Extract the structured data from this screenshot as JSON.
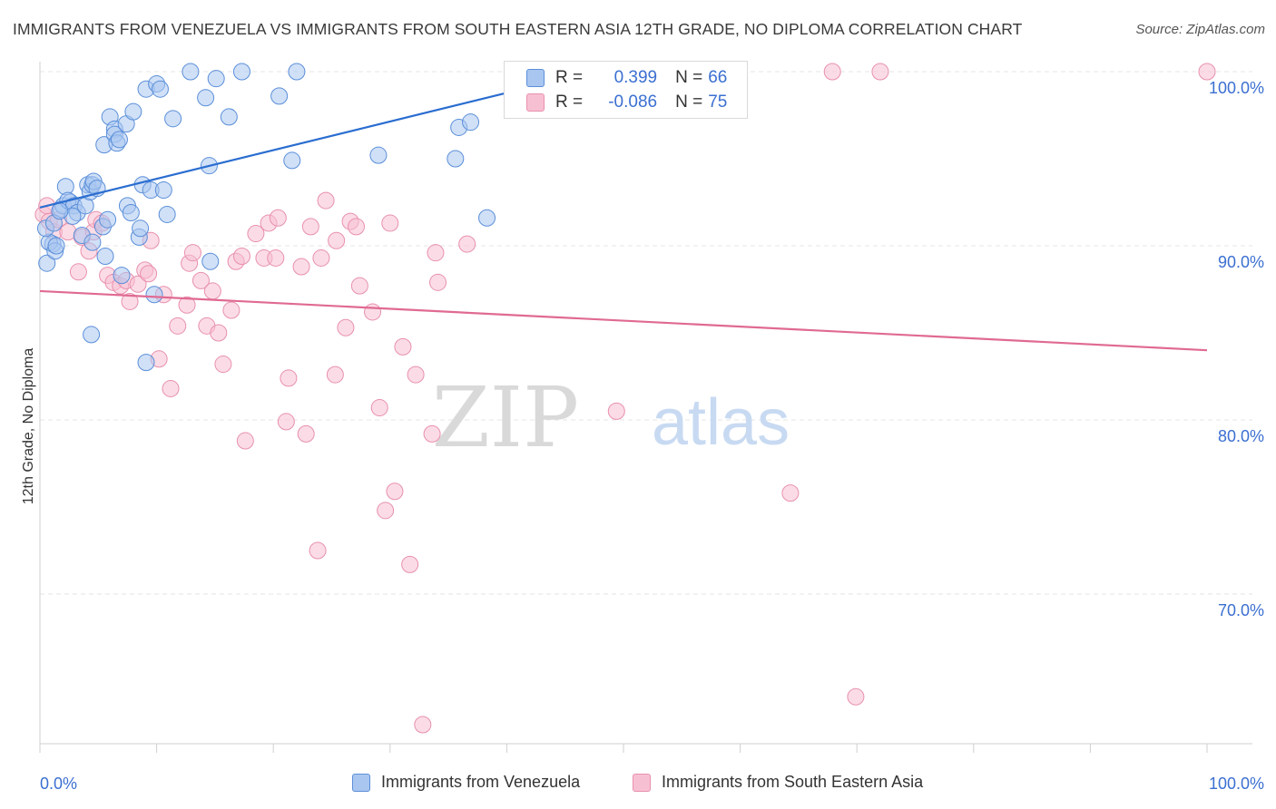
{
  "header": {
    "title": "IMMIGRANTS FROM VENEZUELA VS IMMIGRANTS FROM SOUTH EASTERN ASIA 12TH GRADE, NO DIPLOMA CORRELATION CHART",
    "source": "Source: ZipAtlas.com"
  },
  "legend": {
    "r_label": "R =",
    "n_label": "N =",
    "series": [
      {
        "name": "Immigrants from Venezuela",
        "r": "0.399",
        "n": "66"
      },
      {
        "name": "Immigrants from South Eastern Asia",
        "r": "-0.086",
        "n": "75"
      }
    ]
  },
  "watermark": {
    "left": "ZIP",
    "right": "atlas"
  },
  "chart_data": {
    "type": "scatter",
    "title": "IMMIGRANTS FROM VENEZUELA VS IMMIGRANTS FROM SOUTH EASTERN ASIA 12TH GRADE, NO DIPLOMA CORRELATION CHART",
    "xlabel": "",
    "ylabel": "12th Grade, No Diploma",
    "xlim": [
      0,
      100
    ],
    "ylim": [
      60.5,
      104
    ],
    "x_tick_labels": [
      "0.0%",
      "100.0%"
    ],
    "y_ticks": [
      70,
      80,
      90,
      100
    ],
    "y_tick_labels": [
      "70.0%",
      "80.0%",
      "90.0%",
      "100.0%"
    ],
    "grid": true,
    "legend_position": "top-center",
    "colors": {
      "venezuela_fill": "#a9c6f0",
      "venezuela_stroke": "#5b8fd9",
      "venezuela_line": "#2a6dd0",
      "sea_fill": "#f7c0d2",
      "sea_stroke": "#e890ae",
      "sea_line": "#e06a92",
      "tick_label": "#3b6fd1"
    },
    "series": [
      {
        "name": "Immigrants from Venezuela",
        "trend": {
          "x": [
            0,
            40.1
          ],
          "y": [
            92.2,
            98.8
          ]
        },
        "points": [
          [
            1.1,
            90.1
          ],
          [
            0.6,
            89.0
          ],
          [
            0.8,
            90.2
          ],
          [
            1.3,
            89.7
          ],
          [
            1.4,
            90.0
          ],
          [
            1.8,
            92.1
          ],
          [
            2.0,
            92.3
          ],
          [
            2.2,
            93.4
          ],
          [
            2.6,
            92.5
          ],
          [
            2.4,
            92.6
          ],
          [
            2.9,
            92.3
          ],
          [
            3.2,
            91.9
          ],
          [
            3.6,
            90.6
          ],
          [
            3.9,
            92.3
          ],
          [
            4.1,
            93.5
          ],
          [
            4.3,
            93.1
          ],
          [
            4.5,
            93.5
          ],
          [
            4.5,
            90.2
          ],
          [
            4.6,
            93.7
          ],
          [
            4.9,
            93.3
          ],
          [
            5.4,
            91.1
          ],
          [
            5.6,
            89.4
          ],
          [
            5.8,
            91.5
          ],
          [
            5.5,
            95.8
          ],
          [
            6.0,
            97.4
          ],
          [
            6.4,
            96.7
          ],
          [
            6.4,
            96.4
          ],
          [
            6.6,
            95.9
          ],
          [
            6.8,
            96.1
          ],
          [
            7.4,
            97.0
          ],
          [
            7.5,
            92.3
          ],
          [
            7.8,
            91.9
          ],
          [
            8.0,
            97.7
          ],
          [
            8.5,
            90.5
          ],
          [
            8.6,
            91.0
          ],
          [
            8.8,
            93.5
          ],
          [
            9.1,
            99.0
          ],
          [
            9.5,
            93.2
          ],
          [
            9.8,
            87.2
          ],
          [
            10.0,
            99.3
          ],
          [
            10.3,
            99.0
          ],
          [
            10.6,
            93.2
          ],
          [
            10.9,
            91.8
          ],
          [
            11.4,
            97.3
          ],
          [
            12.9,
            100.0
          ],
          [
            14.2,
            98.5
          ],
          [
            14.5,
            94.6
          ],
          [
            14.6,
            89.1
          ],
          [
            15.1,
            99.6
          ],
          [
            16.2,
            97.4
          ],
          [
            17.3,
            100.0
          ],
          [
            20.5,
            98.6
          ],
          [
            21.6,
            94.9
          ],
          [
            22.0,
            100.0
          ],
          [
            29.0,
            95.2
          ],
          [
            35.6,
            95.0
          ],
          [
            35.9,
            96.8
          ],
          [
            36.9,
            97.1
          ],
          [
            38.3,
            91.6
          ],
          [
            7.0,
            88.3
          ],
          [
            4.4,
            84.9
          ],
          [
            9.1,
            83.3
          ],
          [
            2.8,
            91.7
          ],
          [
            0.5,
            91.0
          ],
          [
            1.2,
            91.3
          ],
          [
            1.7,
            92.0
          ]
        ]
      },
      {
        "name": "Immigrants from South Eastern Asia",
        "trend": {
          "x": [
            0,
            100
          ],
          "y": [
            87.4,
            84.0
          ]
        },
        "points": [
          [
            0.3,
            91.8
          ],
          [
            0.6,
            92.3
          ],
          [
            0.8,
            91.4
          ],
          [
            1.2,
            90.8
          ],
          [
            1.6,
            91.5
          ],
          [
            2.4,
            90.8
          ],
          [
            3.3,
            88.5
          ],
          [
            3.6,
            90.5
          ],
          [
            4.2,
            89.7
          ],
          [
            4.6,
            90.8
          ],
          [
            4.8,
            91.5
          ],
          [
            5.3,
            91.3
          ],
          [
            5.8,
            88.3
          ],
          [
            6.3,
            87.9
          ],
          [
            6.9,
            87.7
          ],
          [
            7.4,
            88.0
          ],
          [
            7.7,
            86.8
          ],
          [
            8.4,
            87.8
          ],
          [
            9.0,
            88.6
          ],
          [
            9.5,
            90.3
          ],
          [
            10.2,
            83.5
          ],
          [
            10.6,
            87.2
          ],
          [
            11.2,
            81.8
          ],
          [
            11.8,
            85.4
          ],
          [
            12.6,
            86.6
          ],
          [
            12.8,
            89.0
          ],
          [
            13.1,
            89.6
          ],
          [
            13.8,
            88.0
          ],
          [
            14.3,
            85.4
          ],
          [
            14.8,
            87.4
          ],
          [
            15.3,
            85.0
          ],
          [
            15.7,
            83.2
          ],
          [
            16.4,
            86.3
          ],
          [
            16.8,
            89.1
          ],
          [
            17.3,
            89.4
          ],
          [
            17.6,
            78.8
          ],
          [
            18.5,
            90.7
          ],
          [
            19.2,
            89.3
          ],
          [
            19.6,
            91.3
          ],
          [
            20.4,
            91.6
          ],
          [
            20.2,
            89.3
          ],
          [
            21.1,
            79.9
          ],
          [
            21.3,
            82.4
          ],
          [
            22.4,
            88.8
          ],
          [
            22.8,
            79.2
          ],
          [
            23.2,
            91.1
          ],
          [
            23.8,
            72.5
          ],
          [
            24.1,
            89.3
          ],
          [
            24.5,
            92.6
          ],
          [
            25.3,
            82.6
          ],
          [
            25.4,
            90.3
          ],
          [
            26.2,
            85.3
          ],
          [
            26.6,
            91.4
          ],
          [
            27.1,
            91.1
          ],
          [
            27.4,
            87.7
          ],
          [
            28.5,
            86.2
          ],
          [
            29.1,
            80.7
          ],
          [
            29.6,
            74.8
          ],
          [
            30.0,
            91.3
          ],
          [
            30.4,
            75.9
          ],
          [
            31.1,
            84.2
          ],
          [
            31.7,
            71.7
          ],
          [
            32.2,
            82.6
          ],
          [
            33.6,
            79.2
          ],
          [
            33.9,
            89.6
          ],
          [
            34.1,
            87.9
          ],
          [
            36.6,
            90.1
          ],
          [
            49.4,
            80.5
          ],
          [
            64.3,
            75.8
          ],
          [
            67.9,
            100.0
          ],
          [
            72.0,
            100.0
          ],
          [
            100.0,
            100.0
          ],
          [
            69.9,
            64.1
          ],
          [
            32.8,
            62.5
          ],
          [
            9.3,
            88.4
          ]
        ]
      }
    ]
  }
}
